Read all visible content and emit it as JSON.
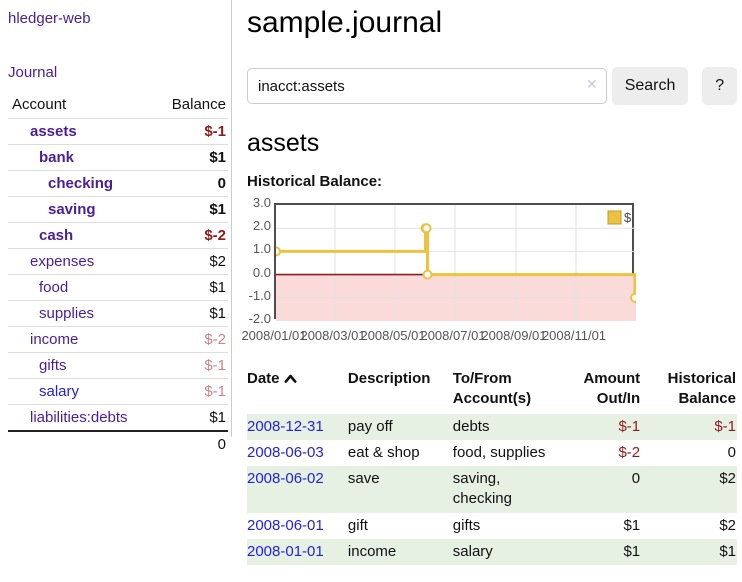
{
  "app": {
    "title": "hledger-web"
  },
  "nav": {
    "journal": "Journal"
  },
  "sidebar": {
    "table_headers": {
      "account": "Account",
      "balance": "Balance"
    },
    "accounts": [
      {
        "name": "assets",
        "depth": 1,
        "balance": "$-1",
        "bold": true,
        "neg": "strong"
      },
      {
        "name": "bank",
        "depth": 2,
        "balance": "$1",
        "bold": true
      },
      {
        "name": "checking",
        "depth": 3,
        "balance": "0",
        "bold": true
      },
      {
        "name": "saving",
        "depth": 3,
        "balance": "$1",
        "bold": true
      },
      {
        "name": "cash",
        "depth": 2,
        "balance": "$-2",
        "bold": true,
        "neg": "strong"
      },
      {
        "name": "expenses",
        "depth": 1,
        "balance": "$2"
      },
      {
        "name": "food",
        "depth": 2,
        "balance": "$1"
      },
      {
        "name": "supplies",
        "depth": 2,
        "balance": "$1"
      },
      {
        "name": "income",
        "depth": 1,
        "balance": "$-2",
        "neg": "muted"
      },
      {
        "name": "gifts",
        "depth": 2,
        "balance": "$-1",
        "neg": "muted"
      },
      {
        "name": "salary",
        "depth": 2,
        "balance": "$-1",
        "neg": "muted",
        "link": "blue"
      },
      {
        "name": "liabilities:debts",
        "depth": 1,
        "balance": "$1"
      }
    ],
    "total": "0"
  },
  "main": {
    "title": "sample.journal",
    "search": {
      "value": "inacct:assets",
      "clear_icon": "✕",
      "button_label": "Search",
      "help_label": "?"
    },
    "account_heading": "assets",
    "section_label": "Historical Balance:"
  },
  "chart_data": {
    "type": "line",
    "step": true,
    "title": "Historical Balance",
    "legend": [
      {
        "label": "$",
        "color": "#edc240"
      }
    ],
    "legend_position": "top-right",
    "grid": true,
    "x_range": [
      "2008-01-01",
      "2009-01-01"
    ],
    "ylim": [
      -2.0,
      3.0
    ],
    "y_ticks": [
      {
        "label": "3.0",
        "value": 3
      },
      {
        "label": "2.0",
        "value": 2
      },
      {
        "label": "1.0",
        "value": 1
      },
      {
        "label": "0.0",
        "value": 0
      },
      {
        "label": "-1.0",
        "value": -1
      },
      {
        "label": "-2.0",
        "value": -2
      }
    ],
    "x_ticks": [
      {
        "label": "2008/01/01",
        "date": "2008-01-01"
      },
      {
        "label": "2008/03/01",
        "date": "2008-03-01"
      },
      {
        "label": "2008/05/01",
        "date": "2008-05-01"
      },
      {
        "label": "2008/07/01",
        "date": "2008-07-01"
      },
      {
        "label": "2008/09/01",
        "date": "2008-09-01"
      },
      {
        "label": "2008/11/01",
        "date": "2008-11-01"
      }
    ],
    "points": [
      {
        "x": "2008-01-01",
        "y": 1
      },
      {
        "x": "2008-06-01",
        "y": 2
      },
      {
        "x": "2008-06-02",
        "y": 2
      },
      {
        "x": "2008-06-03",
        "y": 0
      },
      {
        "x": "2008-12-31",
        "y": -1
      }
    ],
    "colors": {
      "series": "#edc240",
      "marker_fill": "#ffffff",
      "negative_region": "#fbdada",
      "zero_line": "#8e1f1f",
      "gridline": "#e2e2e2",
      "plot_border": "#4e4e4e"
    }
  },
  "register": {
    "columns": [
      {
        "label": "Date",
        "sort": "asc"
      },
      {
        "label": "Description"
      },
      {
        "label": "To/From Account(s)"
      },
      {
        "label": "Amount Out/In"
      },
      {
        "label": "Historical Balance"
      }
    ],
    "rows": [
      {
        "date": "2008-12-31",
        "description": "pay off",
        "accounts": "debts",
        "amount": "$-1",
        "balance": "$-1"
      },
      {
        "date": "2008-06-03",
        "description": "eat & shop",
        "accounts": "food, supplies",
        "amount": "$-2",
        "balance": "0"
      },
      {
        "date": "2008-06-02",
        "description": "save",
        "accounts": "saving,\nchecking",
        "amount": "0",
        "balance": "$2"
      },
      {
        "date": "2008-06-01",
        "description": "gift",
        "accounts": "gifts",
        "amount": "$1",
        "balance": "$2"
      },
      {
        "date": "2008-01-01",
        "description": "income",
        "accounts": "salary",
        "amount": "$1",
        "balance": "$1"
      }
    ]
  }
}
